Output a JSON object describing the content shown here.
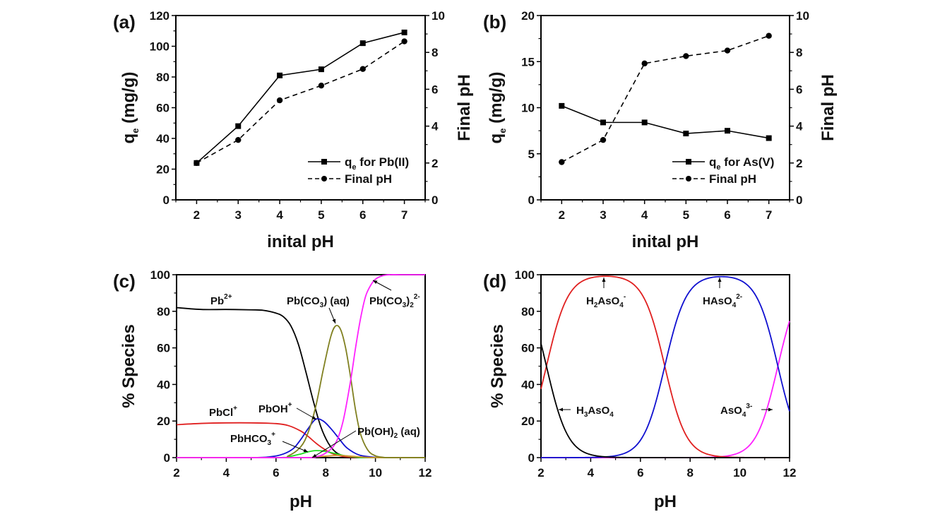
{
  "chart_data": [
    {
      "id": "a",
      "type": "line",
      "panel_label": "(a)",
      "xlabel": "inital pH",
      "ylabel": "q_e (mg/g)",
      "ylabel_parts": {
        "main": "q",
        "sub": "e",
        "rest": " (mg/g)"
      },
      "y2label": "Final pH",
      "x": [
        2,
        3,
        4,
        5,
        6,
        7
      ],
      "xlim": [
        1.5,
        7.5
      ],
      "xticks": [
        2,
        3,
        4,
        5,
        6,
        7
      ],
      "ylim": [
        0,
        120
      ],
      "yticks": [
        0,
        20,
        40,
        60,
        80,
        100,
        120
      ],
      "y2lim": [
        0,
        10
      ],
      "y2ticks": [
        0,
        2,
        4,
        6,
        8,
        10
      ],
      "series": [
        {
          "name": "q_e for Pb(II)",
          "legend": {
            "main": "q",
            "sub": "e",
            "rest": " for Pb(II)"
          },
          "axis": "left",
          "style": "solid",
          "marker": "square",
          "color": "#000000",
          "values": [
            24,
            48,
            81,
            85,
            102,
            109
          ]
        },
        {
          "name": "Final pH",
          "legend": {
            "main": "",
            "sub": "",
            "rest": "Final pH"
          },
          "axis": "right",
          "style": "dashed",
          "marker": "circle",
          "color": "#000000",
          "values": [
            2.0,
            3.25,
            5.4,
            6.2,
            7.1,
            8.6
          ]
        }
      ],
      "legend_position": "bottom-right"
    },
    {
      "id": "b",
      "type": "line",
      "panel_label": "(b)",
      "xlabel": "inital pH",
      "ylabel": "q_e (mg/g)",
      "ylabel_parts": {
        "main": "q",
        "sub": "e",
        "rest": " (mg/g)"
      },
      "y2label": "Final pH",
      "x": [
        2,
        3,
        4,
        5,
        6,
        7
      ],
      "xlim": [
        1.5,
        7.5
      ],
      "xticks": [
        2,
        3,
        4,
        5,
        6,
        7
      ],
      "ylim": [
        0,
        20
      ],
      "yticks": [
        0,
        5,
        10,
        15,
        20
      ],
      "y2lim": [
        0,
        10
      ],
      "y2ticks": [
        0,
        2,
        4,
        6,
        8,
        10
      ],
      "series": [
        {
          "name": "q_e for As(V)",
          "legend": {
            "main": "q",
            "sub": "e",
            "rest": " for As(V)"
          },
          "axis": "left",
          "style": "solid",
          "marker": "square",
          "color": "#000000",
          "values": [
            10.2,
            8.4,
            8.4,
            7.2,
            7.5,
            6.7
          ]
        },
        {
          "name": "Final pH",
          "legend": {
            "main": "",
            "sub": "",
            "rest": "Final pH"
          },
          "axis": "right",
          "style": "dashed",
          "marker": "circle",
          "color": "#000000",
          "values": [
            2.05,
            3.25,
            7.4,
            7.8,
            8.1,
            8.9
          ]
        }
      ],
      "legend_position": "bottom-right"
    },
    {
      "id": "c",
      "type": "line",
      "panel_label": "(c)",
      "xlabel": "pH",
      "ylabel": "% Species",
      "xlim": [
        2,
        12
      ],
      "xticks": [
        2,
        4,
        6,
        8,
        10,
        12
      ],
      "ylim": [
        0,
        100
      ],
      "yticks": [
        0,
        20,
        40,
        60,
        80,
        100
      ],
      "series": [
        {
          "name": "Pb2+",
          "color": "#000000",
          "x": [
            2,
            3,
            4,
            5,
            5.5,
            6,
            6.3,
            6.6,
            6.9,
            7.2,
            7.5,
            7.8,
            8.1,
            8.4,
            8.7,
            9.0,
            9.5,
            10,
            12
          ],
          "values": [
            82,
            81,
            81,
            80.8,
            80.5,
            79,
            77,
            72,
            62,
            47,
            31,
            17,
            8,
            3,
            1,
            0.3,
            0,
            0,
            0
          ]
        },
        {
          "name": "PbCl+",
          "color": "#e02020",
          "x": [
            2,
            3,
            4,
            5,
            6,
            6.5,
            7.0,
            7.3,
            7.6,
            7.9,
            8.2,
            8.5,
            8.8,
            9.2,
            10,
            12
          ],
          "values": [
            18,
            18.7,
            19,
            19,
            18.6,
            17.5,
            14.5,
            11.5,
            8,
            5,
            2.6,
            1.2,
            0.5,
            0.1,
            0,
            0
          ]
        },
        {
          "name": "PbOH+",
          "color": "#1010d0",
          "x": [
            2,
            5,
            5.8,
            6.3,
            6.7,
            7.0,
            7.3,
            7.6,
            7.9,
            8.2,
            8.5,
            8.8,
            9.1,
            9.4,
            9.8,
            10.3,
            12
          ],
          "values": [
            0,
            0,
            0.5,
            2,
            5,
            10,
            16,
            21,
            20,
            16,
            11,
            6,
            3,
            1.2,
            0.4,
            0,
            0
          ]
        },
        {
          "name": "PbHCO3+",
          "color": "#22dd22",
          "x": [
            2,
            6,
            6.5,
            7.0,
            7.3,
            7.6,
            7.9,
            8.2,
            8.5,
            8.8,
            9.2,
            9.6,
            12
          ],
          "values": [
            0,
            0,
            0.5,
            2,
            3.2,
            3.8,
            3.6,
            2.8,
            1.8,
            1,
            0.3,
            0,
            0
          ]
        },
        {
          "name": "Pb(OH)2 (aq)",
          "color": "#d09030",
          "x": [
            2,
            7,
            7.5,
            8,
            8.5,
            9,
            9.5,
            10,
            12
          ],
          "values": [
            0,
            0,
            0.3,
            0.8,
            1.2,
            0.8,
            0.3,
            0,
            0
          ]
        },
        {
          "name": "Pb(CO3) (aq)",
          "color": "#808020",
          "x": [
            2,
            6,
            6.5,
            7.0,
            7.3,
            7.6,
            7.9,
            8.2,
            8.4,
            8.6,
            8.8,
            9.0,
            9.2,
            9.4,
            9.7,
            10.0,
            10.3,
            10.6,
            12
          ],
          "values": [
            0,
            0,
            1,
            6,
            14,
            28,
            48,
            66,
            72,
            70,
            60,
            44,
            26,
            13,
            4,
            1,
            0.2,
            0,
            0
          ]
        },
        {
          "name": "Pb(CO3)2 2-",
          "color": "#ff20ff",
          "x": [
            2,
            7,
            7.6,
            8.0,
            8.4,
            8.7,
            9.0,
            9.2,
            9.4,
            9.6,
            9.8,
            10.0,
            10.3,
            10.6,
            11,
            12
          ],
          "values": [
            0,
            0,
            0.5,
            2.5,
            8,
            20,
            42,
            60,
            76,
            88,
            94,
            97.5,
            99.5,
            100,
            100,
            100
          ]
        }
      ],
      "annotations": [
        {
          "text": "Pb",
          "sup": "2+",
          "sub": ""
        },
        {
          "text": "PbCl",
          "sup": "+",
          "sub": ""
        },
        {
          "text": "PbOH",
          "sup": "+",
          "sub": ""
        },
        {
          "text": "PbHCO",
          "sub": "3",
          "sup": "+"
        },
        {
          "text": "Pb(CO",
          "sub": "3",
          "rest": ") (aq)"
        },
        {
          "text": "Pb(CO",
          "sub": "3",
          "rest": ")",
          "sub2": "2",
          "sup": "2-"
        },
        {
          "text": "Pb(OH)",
          "sub": "2",
          "rest": " (aq)"
        }
      ]
    },
    {
      "id": "d",
      "type": "line",
      "panel_label": "(d)",
      "xlabel": "pH",
      "ylabel": "% Species",
      "xlim": [
        2,
        12
      ],
      "xticks": [
        2,
        4,
        6,
        8,
        10,
        12
      ],
      "ylim": [
        0,
        100
      ],
      "yticks": [
        0,
        20,
        40,
        60,
        80,
        100
      ],
      "pKa": [
        2.22,
        6.98,
        11.53
      ],
      "series": [
        {
          "name": "H3AsO4",
          "color": "#000000"
        },
        {
          "name": "H2AsO4-",
          "color": "#e02020"
        },
        {
          "name": "HAsO4 2-",
          "color": "#1010d0"
        },
        {
          "name": "AsO4 3-",
          "color": "#ff20ff"
        }
      ],
      "annotations": [
        {
          "text": "H",
          "sub": "2",
          "rest": "AsO",
          "sub2": "4",
          "sup": "-"
        },
        {
          "text": "HAsO",
          "sub": "4",
          "sup": "2-"
        },
        {
          "text": "H",
          "sub": "3",
          "rest": "AsO",
          "sub2": "4"
        },
        {
          "text": "AsO",
          "sub": "4",
          "sup": "3-"
        }
      ]
    }
  ]
}
